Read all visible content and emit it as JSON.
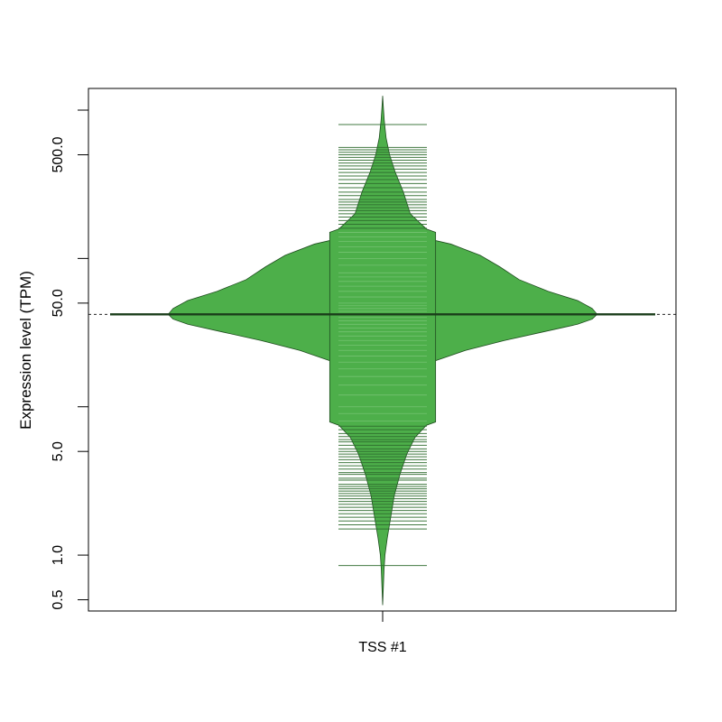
{
  "chart_data": {
    "type": "beanplot",
    "title": "",
    "xlabel": "",
    "ylabel": "Expression level (TPM)",
    "y_scale": "log",
    "ylim": [
      0.42,
      1400
    ],
    "y_ticks": [
      {
        "value": 0.5,
        "label": "0.5"
      },
      {
        "value": 1.0,
        "label": "1.0"
      },
      {
        "value": 5.0,
        "label": "5.0"
      },
      {
        "value": 50.0,
        "label": "50.0"
      },
      {
        "value": 500.0,
        "label": "500.0"
      }
    ],
    "y_minor_ticks": [
      10,
      100,
      1000
    ],
    "categories": [
      "TSS #1"
    ],
    "overall_median_line": 42,
    "colors": {
      "bean_fill": "#4daf4a",
      "bean_outline": "#1f4d1f",
      "box_fill": "#b3deb1",
      "rug_lines": "#2e6b2e",
      "median_line": "#1a3d1a"
    },
    "series": [
      {
        "category": "TSS #1",
        "median": 42,
        "box": {
          "lower": 7.5,
          "upper": 150
        },
        "density_outer": [
          [
            11,
            0.0
          ],
          [
            13,
            0.04
          ],
          [
            16,
            0.1
          ],
          [
            20,
            0.2
          ],
          [
            24,
            0.34
          ],
          [
            28,
            0.5
          ],
          [
            32,
            0.66
          ],
          [
            36,
            0.8
          ],
          [
            39,
            0.86
          ],
          [
            42,
            0.88
          ],
          [
            46,
            0.86
          ],
          [
            52,
            0.8
          ],
          [
            60,
            0.68
          ],
          [
            72,
            0.56
          ],
          [
            88,
            0.48
          ],
          [
            105,
            0.4
          ],
          [
            125,
            0.28
          ],
          [
            140,
            0.15
          ],
          [
            150,
            0.06
          ],
          [
            155,
            0.0
          ]
        ],
        "density_inner": [
          [
            0.46,
            0.0
          ],
          [
            0.6,
            0.003
          ],
          [
            0.8,
            0.006
          ],
          [
            1.0,
            0.01
          ],
          [
            1.3,
            0.02
          ],
          [
            1.8,
            0.035
          ],
          [
            2.5,
            0.05
          ],
          [
            3.5,
            0.075
          ],
          [
            4.8,
            0.105
          ],
          [
            6.2,
            0.14
          ],
          [
            7.5,
            0.19
          ],
          [
            7.9,
            0.23
          ],
          [
            150,
            0.23
          ],
          [
            158,
            0.19
          ],
          [
            200,
            0.12
          ],
          [
            280,
            0.09
          ],
          [
            380,
            0.055
          ],
          [
            500,
            0.03
          ],
          [
            650,
            0.015
          ],
          [
            850,
            0.007
          ],
          [
            1050,
            0.003
          ],
          [
            1250,
            0.0
          ]
        ],
        "rug_values": [
          0.85,
          1.5,
          1.6,
          1.7,
          1.8,
          1.9,
          2.0,
          2.1,
          2.2,
          2.3,
          2.4,
          2.5,
          2.6,
          2.7,
          2.8,
          2.9,
          3.0,
          3.2,
          3.3,
          3.5,
          3.6,
          3.8,
          4.0,
          4.2,
          4.4,
          4.6,
          4.8,
          5.0,
          5.2,
          5.5,
          5.8,
          6.0,
          6.3,
          6.6,
          7.0,
          7.4,
          8.0,
          9.0,
          10.0,
          12,
          14,
          16,
          18,
          20,
          22,
          24,
          26,
          28,
          30,
          32,
          34,
          36,
          38,
          40,
          42,
          44,
          46,
          48,
          50,
          55,
          60,
          65,
          70,
          75,
          80,
          90,
          100,
          110,
          120,
          130,
          140,
          150,
          160,
          170,
          180,
          190,
          200,
          210,
          220,
          230,
          240,
          250,
          265,
          280,
          300,
          320,
          340,
          360,
          380,
          400,
          420,
          440,
          460,
          480,
          500,
          520,
          540,
          560,
          800
        ]
      }
    ]
  }
}
